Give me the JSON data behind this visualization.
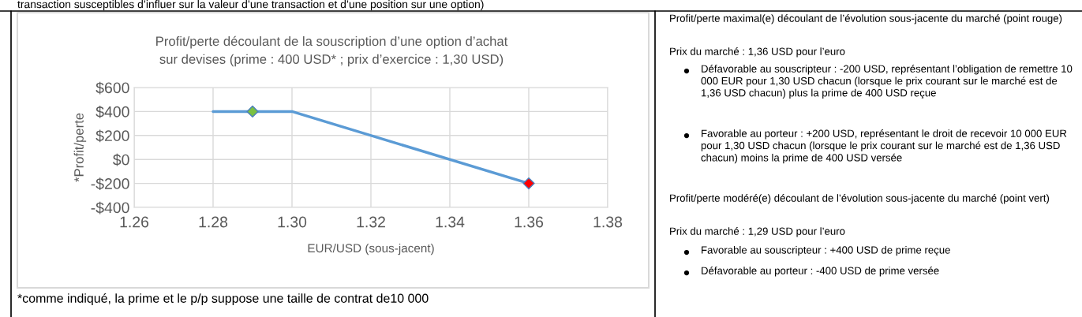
{
  "chart_data": {
    "type": "line",
    "title": "Profit/perte découlant de la souscription d’une option d’achat sur devises (prime : 400 USD* ; prix d’exercice : 1,30 USD)",
    "xlabel": "EUR/USD (sous-jacent)",
    "ylabel": "*Profit/perte",
    "series": [
      {
        "color": "#5b9bd5",
        "x": [
          1.28,
          1.3,
          1.36
        ],
        "values": [
          400,
          400,
          -200
        ],
        "marker": "none"
      },
      {
        "type": "scatter",
        "color": "#7ac142",
        "x": [
          1.29
        ],
        "values": [
          400
        ],
        "marker": "diamond"
      },
      {
        "type": "scatter",
        "color": "#ff0000",
        "x": [
          1.36
        ],
        "values": [
          -200
        ],
        "marker": "diamond"
      }
    ],
    "xlim": [
      1.26,
      1.38
    ],
    "xticks": [
      {
        "value": 1.26,
        "label": "1.26"
      },
      {
        "value": 1.28,
        "label": "1.28"
      },
      {
        "value": 1.3,
        "label": "1.30"
      },
      {
        "value": 1.32,
        "label": "1.32"
      },
      {
        "value": 1.34,
        "label": "1.34"
      },
      {
        "value": 1.36,
        "label": "1.36"
      },
      {
        "value": 1.38,
        "label": "1.38"
      }
    ],
    "ylim": [
      -400,
      600
    ],
    "yticks": [
      {
        "value": -400,
        "label": "-$400"
      },
      {
        "value": -200,
        "label": "-$200"
      },
      {
        "value": 0,
        "label": "$0"
      },
      {
        "value": 200,
        "label": "$200"
      },
      {
        "value": 400,
        "label": "$400"
      },
      {
        "value": 600,
        "label": "$600"
      }
    ],
    "grid": true,
    "legend": false,
    "annotations": [
      "transaction susceptibles d’influer sur la valeur d’une transaction et d’une position sur une option)",
      "*comme indiqué, la prime et le p/p suppose une taille de contrat de10 000",
      "Profit/perte maximal(e) découlant de l’évolution sous-jacente du marché (point rouge)",
      "Prix du marché : 1,36 USD pour l’euro",
      "Défavorable au souscripteur : -200 USD, représentant l’obligation de remettre 10 000 EUR pour 1,30 USD chacun (lorsque le prix courant sur le marché est de 1,36 USD chacun) plus la prime de 400 USD reçue",
      "Favorable au porteur : +200 USD, représentant le droit de recevoir 10 000 EUR pour 1,30 USD chacun (lorsque le prix courant sur le marché est de 1,36 USD chacun) moins la prime de 400 USD versée",
      "Profit/perte modéré(e) découlant de l’évolution sous-jacente du marché (point vert)",
      "Prix du marché : 1,29 USD pour l’euro",
      "Favorable au souscripteur : +400 USD de prime reçue",
      "Défavorable au porteur : -400 USD de prime versée"
    ]
  }
}
